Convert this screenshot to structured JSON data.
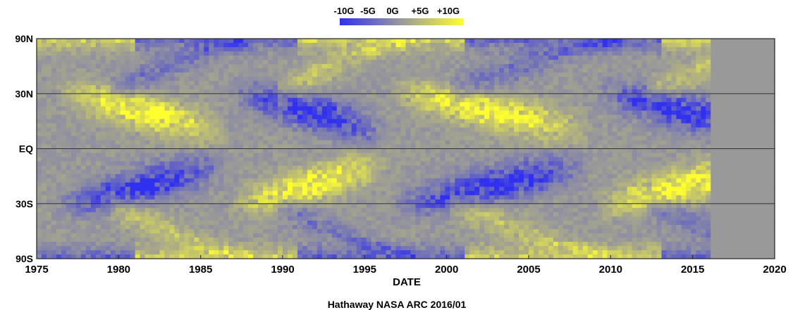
{
  "chart_data": {
    "type": "heatmap",
    "title": "",
    "xlabel": "DATE",
    "ylabel": "",
    "credit": "Hathaway NASA ARC 2016/01",
    "x_ticks": [
      "1975",
      "1980",
      "1985",
      "1990",
      "1995",
      "2000",
      "2005",
      "2010",
      "2015",
      "2020"
    ],
    "y_ticks": [
      "90N",
      "30N",
      "EQ",
      "30S",
      "90S"
    ],
    "xlim": [
      1975,
      2020
    ],
    "y_scale": "sine-latitude",
    "data_end": 2016.0,
    "colorbar": {
      "labels": [
        "-10G",
        "-5G",
        "0G",
        "+5G",
        "+10G"
      ],
      "range": [
        -10,
        10
      ],
      "low_color": "#3a3af2",
      "mid_color": "#999999",
      "high_color": "#fafa3c"
    },
    "no_data_color": "#999999",
    "grid_lines": [
      "30N",
      "EQ",
      "30S"
    ],
    "features": [
      {
        "region": "northern low latitudes",
        "cycle_21": "positive",
        "cycle_22": "negative",
        "cycle_23": "positive",
        "cycle_24": "negative"
      },
      {
        "region": "southern low latitudes",
        "cycle_21": "negative",
        "cycle_22": "positive",
        "cycle_23": "negative",
        "cycle_24": "positive"
      }
    ]
  }
}
